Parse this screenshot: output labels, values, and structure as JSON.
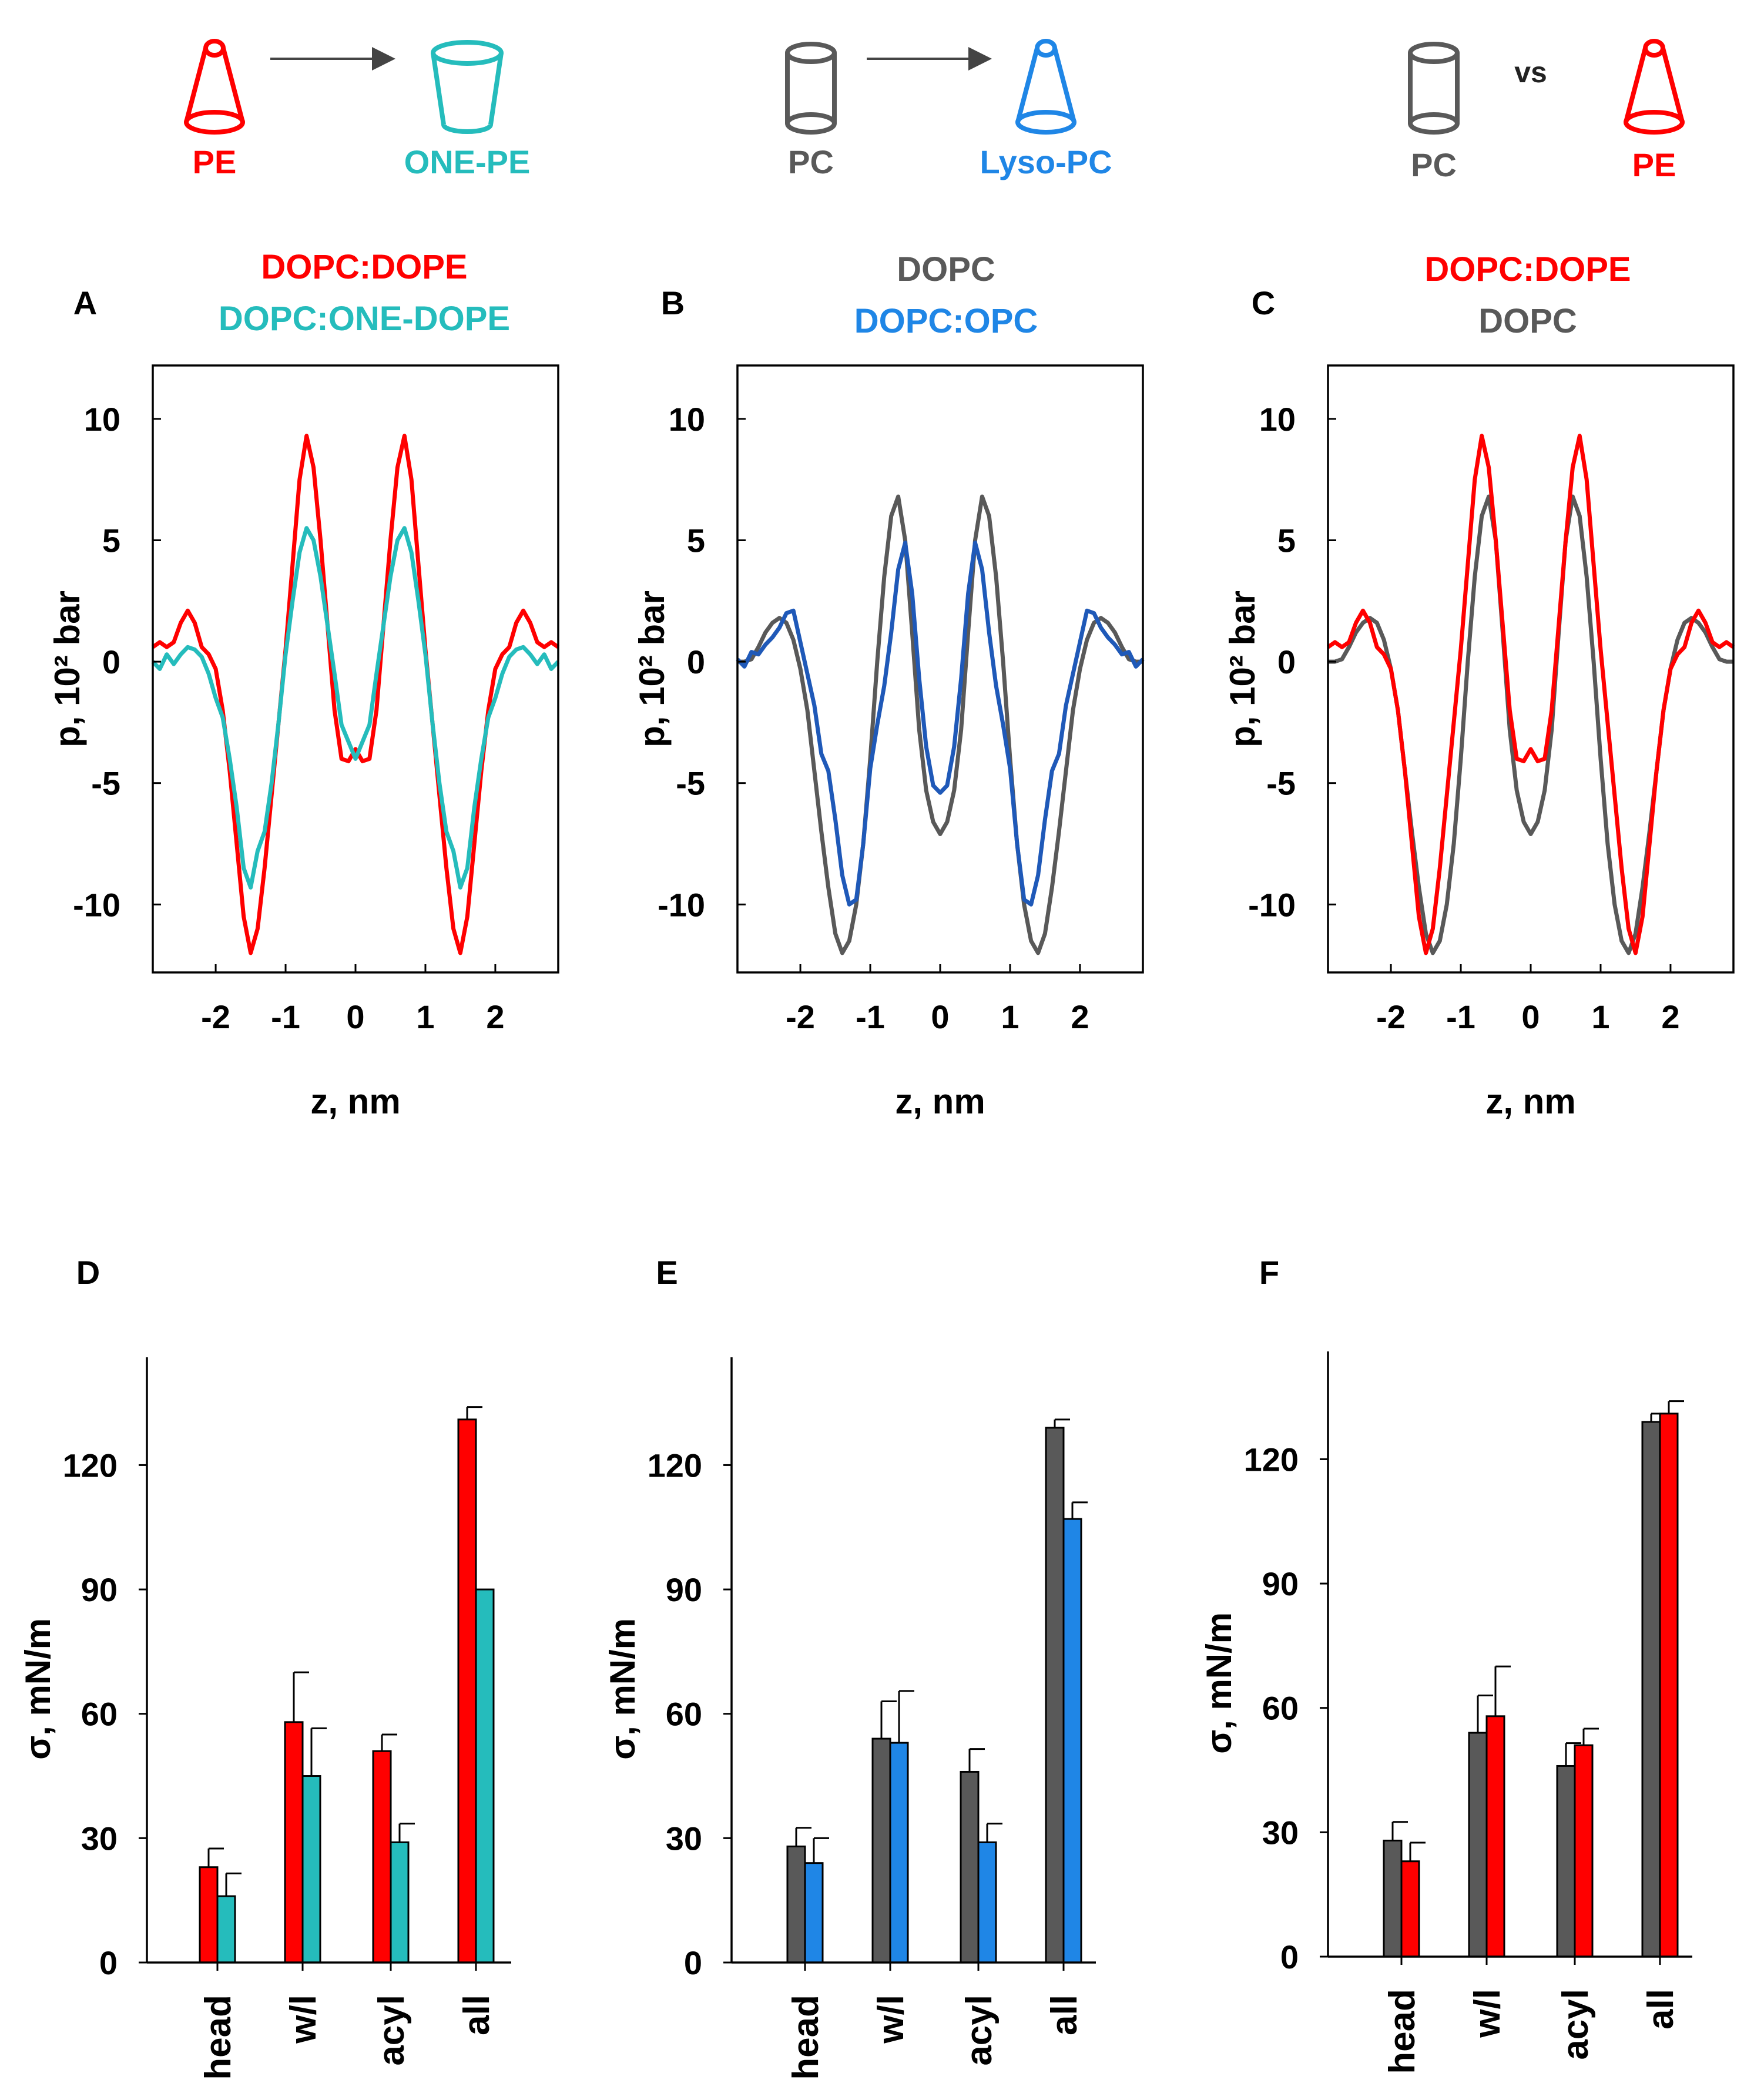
{
  "colors": {
    "red": "#ff0000",
    "teal": "#25bcbc",
    "gray": "#595959",
    "dark_blue": "#1f59b8",
    "light_blue": "#1f86e6",
    "arrow": "#444444"
  },
  "schematics": [
    {
      "left": {
        "shape": "cone-icon",
        "label": "PE",
        "color": "red"
      },
      "connector": "arrow",
      "right": {
        "shape": "inverted-cone-icon",
        "label": "ONE-PE",
        "color": "teal"
      }
    },
    {
      "left": {
        "shape": "cylinder-icon",
        "label": "PC",
        "color": "gray"
      },
      "connector": "arrow",
      "right": {
        "shape": "cone-icon",
        "label": "Lyso-PC",
        "color": "light_blue"
      }
    },
    {
      "left": {
        "shape": "cylinder-icon",
        "label": "PC",
        "color": "gray"
      },
      "connector": "vs",
      "connector_label": "vs",
      "right": {
        "shape": "cone-icon",
        "label": "PE",
        "color": "red"
      }
    }
  ],
  "chart_data": [
    {
      "type": "line",
      "panel": "A",
      "title_lines": [
        {
          "text": "DOPC:DOPE",
          "color": "red"
        },
        {
          "text": "DOPC:ONE-DOPE",
          "color": "teal"
        }
      ],
      "xlabel": "z, nm",
      "ylabel": "p, 10² bar",
      "xlim": [
        -2.9,
        2.9
      ],
      "ylim": [
        -12.8,
        12.2
      ],
      "xticks": [
        -2,
        -1,
        0,
        1,
        2
      ],
      "yticks": [
        -10,
        -5,
        0,
        5,
        10
      ],
      "grid": false,
      "series": [
        {
          "name": "DOPC:DOPE",
          "color": "red",
          "x": [
            0,
            0.1,
            0.2,
            0.3,
            0.4,
            0.5,
            0.6,
            0.7,
            0.8,
            0.9,
            1.0,
            1.1,
            1.2,
            1.3,
            1.4,
            1.5,
            1.6,
            1.7,
            1.8,
            1.9,
            2.0,
            2.1,
            2.2,
            2.3,
            2.4,
            2.5,
            2.6,
            2.7,
            2.8,
            2.9
          ],
          "y": [
            -3.6,
            -4.1,
            -4.0,
            -2.0,
            1.5,
            5.0,
            8.0,
            9.3,
            7.5,
            4.0,
            0.5,
            -2.5,
            -5.5,
            -8.5,
            -11.0,
            -12.0,
            -10.5,
            -7.5,
            -4.5,
            -2.0,
            -0.3,
            0.3,
            0.6,
            1.6,
            2.1,
            1.6,
            0.8,
            0.6,
            0.8,
            0.6
          ]
        },
        {
          "name": "DOPC:ONE-DOPE",
          "color": "teal",
          "x": [
            0,
            0.1,
            0.2,
            0.3,
            0.4,
            0.5,
            0.6,
            0.7,
            0.8,
            0.9,
            1.0,
            1.1,
            1.2,
            1.3,
            1.4,
            1.5,
            1.6,
            1.7,
            1.8,
            1.9,
            2.0,
            2.1,
            2.2,
            2.3,
            2.4,
            2.5,
            2.6,
            2.7,
            2.8,
            2.9
          ],
          "y": [
            -4.0,
            -3.3,
            -2.6,
            -0.5,
            1.5,
            3.5,
            5.0,
            5.5,
            4.5,
            2.5,
            0.3,
            -2.5,
            -5.0,
            -7.0,
            -7.8,
            -9.3,
            -8.5,
            -6.0,
            -4.0,
            -2.3,
            -1.5,
            -0.5,
            0.2,
            0.5,
            0.6,
            0.3,
            -0.1,
            0.3,
            -0.3,
            0.0
          ]
        }
      ]
    },
    {
      "type": "line",
      "panel": "B",
      "title_lines": [
        {
          "text": "DOPC",
          "color": "gray"
        },
        {
          "text": "DOPC:OPC",
          "color": "light_blue"
        }
      ],
      "xlabel": "z, nm",
      "ylabel": "p, 10² bar",
      "xlim": [
        -2.9,
        2.9
      ],
      "ylim": [
        -12.8,
        12.2
      ],
      "xticks": [
        -2,
        -1,
        0,
        1,
        2
      ],
      "yticks": [
        -10,
        -5,
        0,
        5,
        10
      ],
      "grid": false,
      "series": [
        {
          "name": "DOPC",
          "color": "gray",
          "x": [
            0,
            0.1,
            0.2,
            0.3,
            0.4,
            0.5,
            0.6,
            0.7,
            0.8,
            0.9,
            1.0,
            1.1,
            1.2,
            1.3,
            1.4,
            1.5,
            1.6,
            1.7,
            1.8,
            1.9,
            2.0,
            2.1,
            2.2,
            2.3,
            2.4,
            2.5,
            2.6,
            2.7,
            2.8,
            2.9
          ],
          "y": [
            -7.1,
            -6.6,
            -5.3,
            -2.8,
            1.2,
            5.0,
            6.8,
            6.0,
            3.5,
            0.0,
            -4.0,
            -7.5,
            -10.0,
            -11.5,
            -12.0,
            -11.2,
            -9.3,
            -7.0,
            -4.5,
            -2.0,
            -0.3,
            0.9,
            1.6,
            1.8,
            1.6,
            1.2,
            0.6,
            0.1,
            0.0,
            0.0
          ]
        },
        {
          "name": "DOPC:OPC",
          "color": "dark_blue",
          "x": [
            0,
            0.1,
            0.2,
            0.3,
            0.4,
            0.5,
            0.6,
            0.7,
            0.8,
            0.9,
            1.0,
            1.1,
            1.2,
            1.3,
            1.4,
            1.5,
            1.6,
            1.7,
            1.8,
            1.9,
            2.0,
            2.1,
            2.2,
            2.3,
            2.4,
            2.5,
            2.6,
            2.7,
            2.8,
            2.9
          ],
          "y": [
            -5.4,
            -5.1,
            -3.5,
            -0.7,
            2.8,
            4.9,
            3.8,
            1.2,
            -1.0,
            -2.6,
            -4.4,
            -7.5,
            -9.8,
            -10.0,
            -8.8,
            -6.5,
            -4.5,
            -3.8,
            -1.8,
            -0.5,
            0.8,
            2.1,
            2.0,
            1.4,
            1.0,
            0.7,
            0.3,
            0.4,
            -0.2,
            0.1
          ]
        }
      ]
    },
    {
      "type": "line",
      "panel": "C",
      "title_lines": [
        {
          "text": "DOPC:DOPE",
          "color": "red"
        },
        {
          "text": "DOPC",
          "color": "gray"
        }
      ],
      "xlabel": "z, nm",
      "ylabel": "p, 10² bar",
      "xlim": [
        -2.9,
        2.9
      ],
      "ylim": [
        -12.8,
        12.2
      ],
      "xticks": [
        -2,
        -1,
        0,
        1,
        2
      ],
      "yticks": [
        -10,
        -5,
        0,
        5,
        10
      ],
      "grid": false,
      "series": [
        {
          "name": "DOPC",
          "color": "gray",
          "x": [
            0,
            0.1,
            0.2,
            0.3,
            0.4,
            0.5,
            0.6,
            0.7,
            0.8,
            0.9,
            1.0,
            1.1,
            1.2,
            1.3,
            1.4,
            1.5,
            1.6,
            1.7,
            1.8,
            1.9,
            2.0,
            2.1,
            2.2,
            2.3,
            2.4,
            2.5,
            2.6,
            2.7,
            2.8,
            2.9
          ],
          "y": [
            -7.1,
            -6.6,
            -5.3,
            -2.8,
            1.2,
            5.0,
            6.8,
            6.0,
            3.5,
            0.0,
            -4.0,
            -7.5,
            -10.0,
            -11.5,
            -12.0,
            -11.2,
            -9.3,
            -7.0,
            -4.5,
            -2.0,
            -0.3,
            0.9,
            1.6,
            1.8,
            1.6,
            1.2,
            0.6,
            0.1,
            0.0,
            0.0
          ]
        },
        {
          "name": "DOPC:DOPE",
          "color": "red",
          "x": [
            0,
            0.1,
            0.2,
            0.3,
            0.4,
            0.5,
            0.6,
            0.7,
            0.8,
            0.9,
            1.0,
            1.1,
            1.2,
            1.3,
            1.4,
            1.5,
            1.6,
            1.7,
            1.8,
            1.9,
            2.0,
            2.1,
            2.2,
            2.3,
            2.4,
            2.5,
            2.6,
            2.7,
            2.8,
            2.9
          ],
          "y": [
            -3.6,
            -4.1,
            -4.0,
            -2.0,
            1.5,
            5.0,
            8.0,
            9.3,
            7.5,
            4.0,
            0.5,
            -2.5,
            -5.5,
            -8.5,
            -11.0,
            -12.0,
            -10.5,
            -7.5,
            -4.5,
            -2.0,
            -0.3,
            0.3,
            0.6,
            1.6,
            2.1,
            1.6,
            0.8,
            0.6,
            0.8,
            0.6
          ]
        }
      ]
    },
    {
      "type": "bar",
      "panel": "D",
      "ylabel": "σ, mN/m",
      "ylim": [
        0,
        146
      ],
      "yticks": [
        0,
        30,
        60,
        90,
        120
      ],
      "categories": [
        "head",
        "w/l",
        "acyl",
        "all"
      ],
      "series": [
        {
          "name": "DOPC:DOPE",
          "color": "red",
          "values": [
            23,
            58,
            51,
            131
          ],
          "errors": [
            4.5,
            12,
            4,
            3
          ]
        },
        {
          "name": "DOPC:ONE-DOPE",
          "color": "teal",
          "values": [
            16,
            45,
            29,
            90
          ],
          "errors": [
            5.5,
            11.5,
            4.5,
            0
          ]
        }
      ]
    },
    {
      "type": "bar",
      "panel": "E",
      "ylabel": "σ, mN/m",
      "ylim": [
        0,
        146
      ],
      "yticks": [
        0,
        30,
        60,
        90,
        120
      ],
      "categories": [
        "head",
        "w/l",
        "acyl",
        "all"
      ],
      "series": [
        {
          "name": "DOPC",
          "color": "gray",
          "values": [
            28,
            54,
            46,
            129
          ],
          "errors": [
            4.5,
            9,
            5.5,
            2
          ]
        },
        {
          "name": "DOPC:OPC",
          "color": "light_blue",
          "values": [
            24,
            53,
            29,
            107
          ],
          "errors": [
            6,
            12.5,
            4.5,
            4
          ]
        }
      ]
    },
    {
      "type": "bar",
      "panel": "F",
      "ylabel": "σ, mN/m",
      "ylim": [
        0,
        146
      ],
      "yticks": [
        0,
        30,
        60,
        90,
        120
      ],
      "categories": [
        "head",
        "w/l",
        "acyl",
        "all"
      ],
      "series": [
        {
          "name": "DOPC",
          "color": "gray",
          "values": [
            28,
            54,
            46,
            129
          ],
          "errors": [
            4.5,
            9,
            5.5,
            2
          ]
        },
        {
          "name": "DOPC:DOPE",
          "color": "red",
          "values": [
            23,
            58,
            51,
            131
          ],
          "errors": [
            4.5,
            12,
            4,
            3
          ]
        }
      ]
    }
  ]
}
